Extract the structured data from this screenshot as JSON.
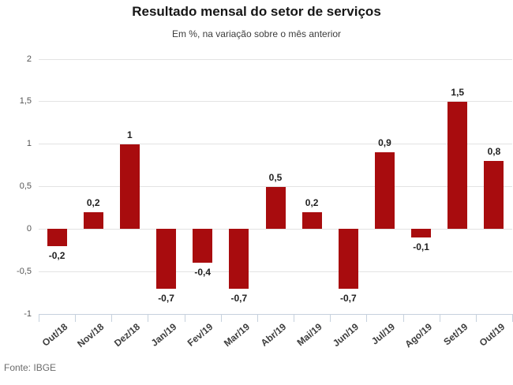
{
  "header": {
    "title": "Resultado mensal do setor de serviços",
    "subtitle": "Em %, na variação sobre o mês anterior"
  },
  "footer": {
    "source": "Fonte: IBGE"
  },
  "chart_data": {
    "type": "bar",
    "title": "Resultado mensal do setor de serviços",
    "subtitle": "Em %, na variação sobre o mês anterior",
    "categories": [
      "Out/18",
      "Nov/18",
      "Dez/18",
      "Jan/19",
      "Fev/19",
      "Mar/19",
      "Abr/19",
      "Mai/19",
      "Jun/19",
      "Jul/19",
      "Ago/19",
      "Set/19",
      "Out/19"
    ],
    "values": [
      -0.2,
      0.2,
      1,
      -0.7,
      -0.4,
      -0.7,
      0.5,
      0.2,
      -0.7,
      0.9,
      -0.1,
      1.5,
      0.8
    ],
    "value_labels": [
      "-0,2",
      "0,2",
      "1",
      "-0,7",
      "-0,4",
      "-0,7",
      "0,5",
      "0,2",
      "-0,7",
      "0,9",
      "-0,1",
      "1,5",
      "0,8"
    ],
    "xlabel": "",
    "ylabel": "",
    "ylim": [
      -1,
      2
    ],
    "yticks": [
      2,
      1.5,
      1,
      0.5,
      0,
      -0.5,
      -1
    ],
    "ytick_labels": [
      "2",
      "1,5",
      "1",
      "0,5",
      "0",
      "-0,5",
      "-1"
    ],
    "grid": true,
    "legend_position": "none",
    "bar_color": "#a80c0e",
    "source": "Fonte: IBGE"
  }
}
